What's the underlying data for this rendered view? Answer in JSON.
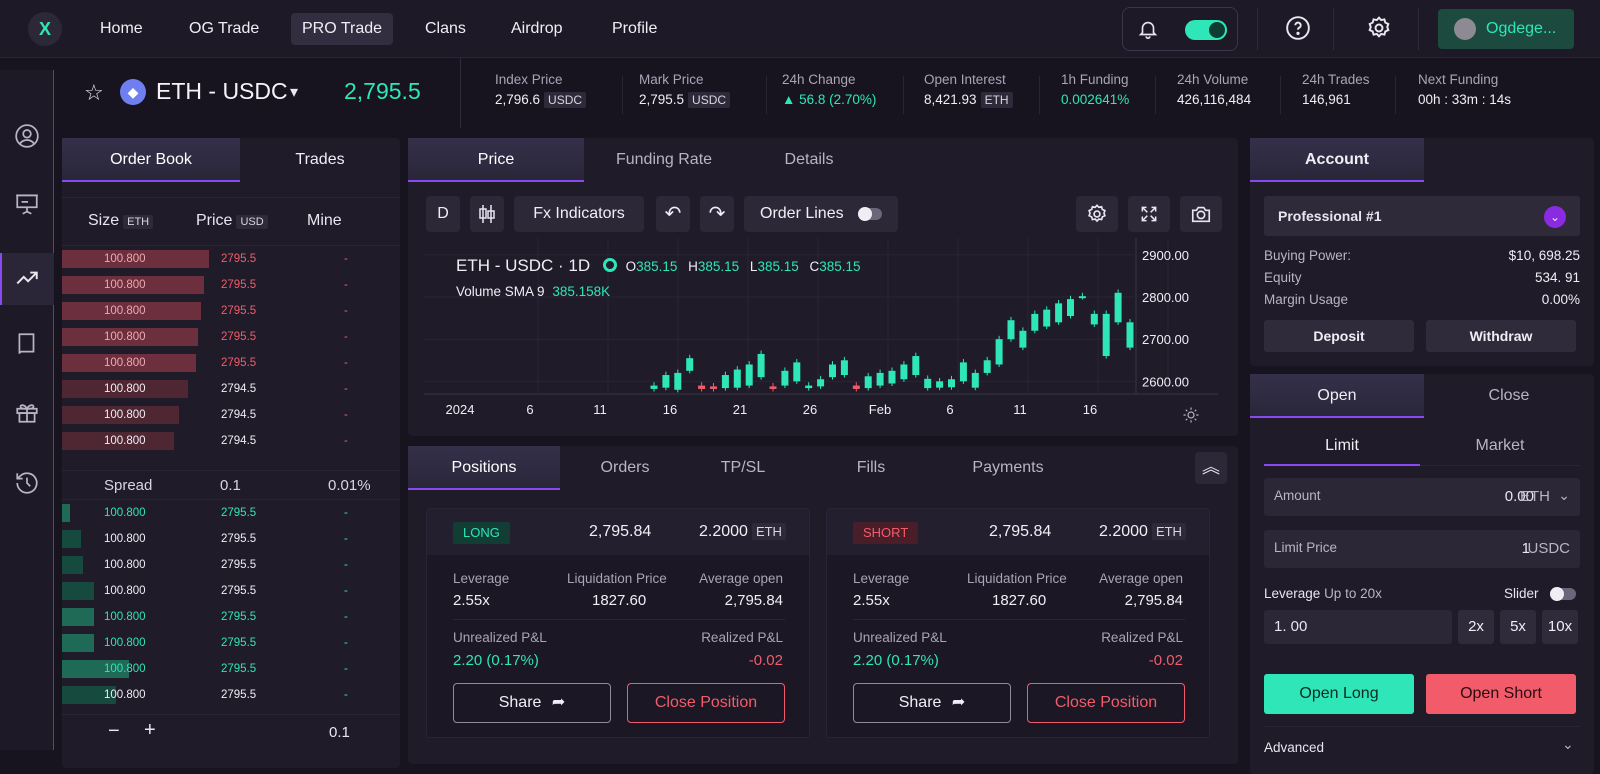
{
  "nav": {
    "logo": "X",
    "items": [
      {
        "label": "Home",
        "active": false
      },
      {
        "label": "OG Trade",
        "active": false
      },
      {
        "label": "PRO Trade",
        "active": true
      },
      {
        "label": "Clans",
        "active": false
      },
      {
        "label": "Airdrop",
        "active": false
      },
      {
        "label": "Profile",
        "active": false
      }
    ],
    "user": "Ogdege..."
  },
  "ticker": {
    "pair": "ETH - USDC",
    "last_price": "2,795.5",
    "stats": [
      {
        "label": "Index Price",
        "value": "2,796.6",
        "unit": "USDC"
      },
      {
        "label": "Mark Price",
        "value": "2,795.5",
        "unit": "USDC"
      },
      {
        "label": "24h Change",
        "value": "▲ 56.8 (2.70%)",
        "color": "green"
      },
      {
        "label": "Open Interest",
        "value": "8,421.93",
        "unit": "ETH"
      },
      {
        "label": "1h Funding",
        "value": "0.002641%",
        "color": "green"
      },
      {
        "label": "24h Volume",
        "value": "426,116,484"
      },
      {
        "label": "24h Trades",
        "value": "146,961"
      },
      {
        "label": "Next Funding",
        "value": "00h : 33m : 14s"
      }
    ]
  },
  "orderbook": {
    "tabs": [
      "Order Book",
      "Trades"
    ],
    "headers": {
      "size": "Size",
      "size_unit": "ETH",
      "price": "Price",
      "price_unit": "USD",
      "mine": "Mine"
    },
    "asks": [
      {
        "size": "100.800",
        "price": "2795.5",
        "mine": "-",
        "depth": 0.92,
        "hl": true
      },
      {
        "size": "100.800",
        "price": "2795.5",
        "mine": "-",
        "depth": 0.89,
        "hl": true
      },
      {
        "size": "100.800",
        "price": "2795.5",
        "mine": "-",
        "depth": 0.87,
        "hl": true
      },
      {
        "size": "100.800",
        "price": "2795.5",
        "mine": "-",
        "depth": 0.85,
        "hl": true
      },
      {
        "size": "100.800",
        "price": "2795.5",
        "mine": "-",
        "depth": 0.84,
        "hl": true
      },
      {
        "size": "100.800",
        "price": "2794.5",
        "mine": "-",
        "depth": 0.79,
        "hl": false
      },
      {
        "size": "100.800",
        "price": "2794.5",
        "mine": "-",
        "depth": 0.73,
        "hl": false
      },
      {
        "size": "100.800",
        "price": "2794.5",
        "mine": "-",
        "depth": 0.7,
        "hl": false
      }
    ],
    "spread": {
      "label": "Spread",
      "value": "0.1",
      "pct": "0.01%"
    },
    "bids": [
      {
        "size": "100.800",
        "price": "2795.5",
        "mine": "-",
        "depth": 0.05,
        "hl": true
      },
      {
        "size": "100.800",
        "price": "2795.5",
        "mine": "-",
        "depth": 0.12,
        "hl": false
      },
      {
        "size": "100.800",
        "price": "2795.5",
        "mine": "-",
        "depth": 0.13,
        "hl": false
      },
      {
        "size": "100.800",
        "price": "2795.5",
        "mine": "-",
        "depth": 0.2,
        "hl": false
      },
      {
        "size": "100.800",
        "price": "2795.5",
        "mine": "-",
        "depth": 0.2,
        "hl": true
      },
      {
        "size": "100.800",
        "price": "2795.5",
        "mine": "-",
        "depth": 0.2,
        "hl": true
      },
      {
        "size": "100.800",
        "price": "2795.5",
        "mine": "-",
        "depth": 0.42,
        "hl": true
      },
      {
        "size": "100.800",
        "price": "2795.5",
        "mine": "-",
        "depth": 0.34,
        "hl": false
      }
    ],
    "footer_value": "0.1"
  },
  "chart": {
    "tabs": [
      "Price",
      "Funding Rate",
      "Details"
    ],
    "toolbar": {
      "interval": "D",
      "indicators": "Fx Indicators",
      "order_lines": "Order Lines"
    },
    "legend": {
      "title": "ETH - USDC · 1D",
      "o_label": "O",
      "o": "385.15",
      "h_label": "H",
      "h": "385.15",
      "l_label": "L",
      "l": "385.15",
      "c_label": "C",
      "c": "385.15",
      "vol_label": "Volume SMA 9",
      "vol": "385.158K"
    },
    "colors": {
      "up": "#2ee6b8",
      "down": "#f25c6a"
    }
  },
  "chart_data": {
    "type": "candlestick",
    "x_tick_labels": [
      "2024",
      "6",
      "11",
      "16",
      "21",
      "26",
      "Feb",
      "6",
      "11",
      "16"
    ],
    "y_tick_labels": [
      "2900.00",
      "2800.00",
      "2700.00",
      "2600.00"
    ],
    "ylim": [
      2570,
      2940
    ],
    "candles": [
      {
        "o": 2582,
        "c": 2590
      },
      {
        "o": 2585,
        "c": 2615
      },
      {
        "o": 2580,
        "c": 2620
      },
      {
        "o": 2625,
        "c": 2655
      },
      {
        "o": 2590,
        "c": 2582
      },
      {
        "o": 2588,
        "c": 2582
      },
      {
        "o": 2584,
        "c": 2615
      },
      {
        "o": 2585,
        "c": 2628
      },
      {
        "o": 2590,
        "c": 2640
      },
      {
        "o": 2610,
        "c": 2665
      },
      {
        "o": 2588,
        "c": 2582
      },
      {
        "o": 2590,
        "c": 2625
      },
      {
        "o": 2600,
        "c": 2645
      },
      {
        "o": 2584,
        "c": 2590
      },
      {
        "o": 2588,
        "c": 2605
      },
      {
        "o": 2610,
        "c": 2640
      },
      {
        "o": 2615,
        "c": 2650
      },
      {
        "o": 2590,
        "c": 2582
      },
      {
        "o": 2584,
        "c": 2612
      },
      {
        "o": 2590,
        "c": 2620
      },
      {
        "o": 2595,
        "c": 2625
      },
      {
        "o": 2605,
        "c": 2640
      },
      {
        "o": 2615,
        "c": 2660
      },
      {
        "o": 2584,
        "c": 2606
      },
      {
        "o": 2585,
        "c": 2600
      },
      {
        "o": 2586,
        "c": 2605
      },
      {
        "o": 2600,
        "c": 2645
      },
      {
        "o": 2585,
        "c": 2620
      },
      {
        "o": 2620,
        "c": 2650
      },
      {
        "o": 2640,
        "c": 2700
      },
      {
        "o": 2700,
        "c": 2745
      },
      {
        "o": 2680,
        "c": 2720
      },
      {
        "o": 2720,
        "c": 2760
      },
      {
        "o": 2730,
        "c": 2770
      },
      {
        "o": 2740,
        "c": 2785
      },
      {
        "o": 2755,
        "c": 2795
      },
      {
        "o": 2800,
        "c": 2802
      },
      {
        "o": 2735,
        "c": 2760
      },
      {
        "o": 2660,
        "c": 2760
      },
      {
        "o": 2740,
        "c": 2810
      },
      {
        "o": 2680,
        "c": 2740
      }
    ]
  },
  "positions": {
    "tabs": [
      "Positions",
      "Orders",
      "TP/SL",
      "Fills",
      "Payments"
    ],
    "cards": [
      {
        "side": "LONG",
        "entry": "2,795.84",
        "size": "2.2000",
        "unit": "ETH",
        "leverage_label": "Leverage",
        "leverage": "2.55x",
        "liq_label": "Liquidation Price",
        "liq": "1827.60",
        "avg_label": "Average open",
        "avg": "2,795.84",
        "upnl_label": "Unrealized P&L",
        "upnl": "2.20 (0.17%)",
        "rpnl_label": "Realized P&L",
        "rpnl": "-0.02",
        "share": "Share",
        "close": "Close Position"
      },
      {
        "side": "SHORT",
        "entry": "2,795.84",
        "size": "2.2000",
        "unit": "ETH",
        "leverage_label": "Leverage",
        "leverage": "2.55x",
        "liq_label": "Liquidation Price",
        "liq": "1827.60",
        "avg_label": "Average open",
        "avg": "2,795.84",
        "upnl_label": "Unrealized P&L",
        "upnl": "2.20 (0.17%)",
        "rpnl_label": "Realized P&L",
        "rpnl": "-0.02",
        "share": "Share",
        "close": "Close Position"
      }
    ]
  },
  "account": {
    "tab": "Account",
    "profile": "Professional #1",
    "rows": [
      {
        "label": "Buying Power:",
        "value": "$10, 698.25"
      },
      {
        "label": "Equity",
        "value": "534. 91"
      },
      {
        "label": "Margin Usage",
        "value": "0.00%"
      }
    ],
    "deposit": "Deposit",
    "withdraw": "Withdraw"
  },
  "trade": {
    "tabs": [
      "Open",
      "Close"
    ],
    "subtabs": [
      "Limit",
      "Market"
    ],
    "amount_label": "Amount",
    "amount_value": "0.00",
    "amount_unit": "ETH",
    "limit_label": "Limit Price",
    "limit_value": "1",
    "limit_unit": "USDC",
    "leverage_label": "Leverage",
    "leverage_hint": "Up to 20x",
    "slider_label": "Slider",
    "leverage_value": "1. 00",
    "quick": [
      "2x",
      "5x",
      "10x"
    ],
    "open_long": "Open Long",
    "open_short": "Open Short",
    "advanced": "Advanced"
  }
}
